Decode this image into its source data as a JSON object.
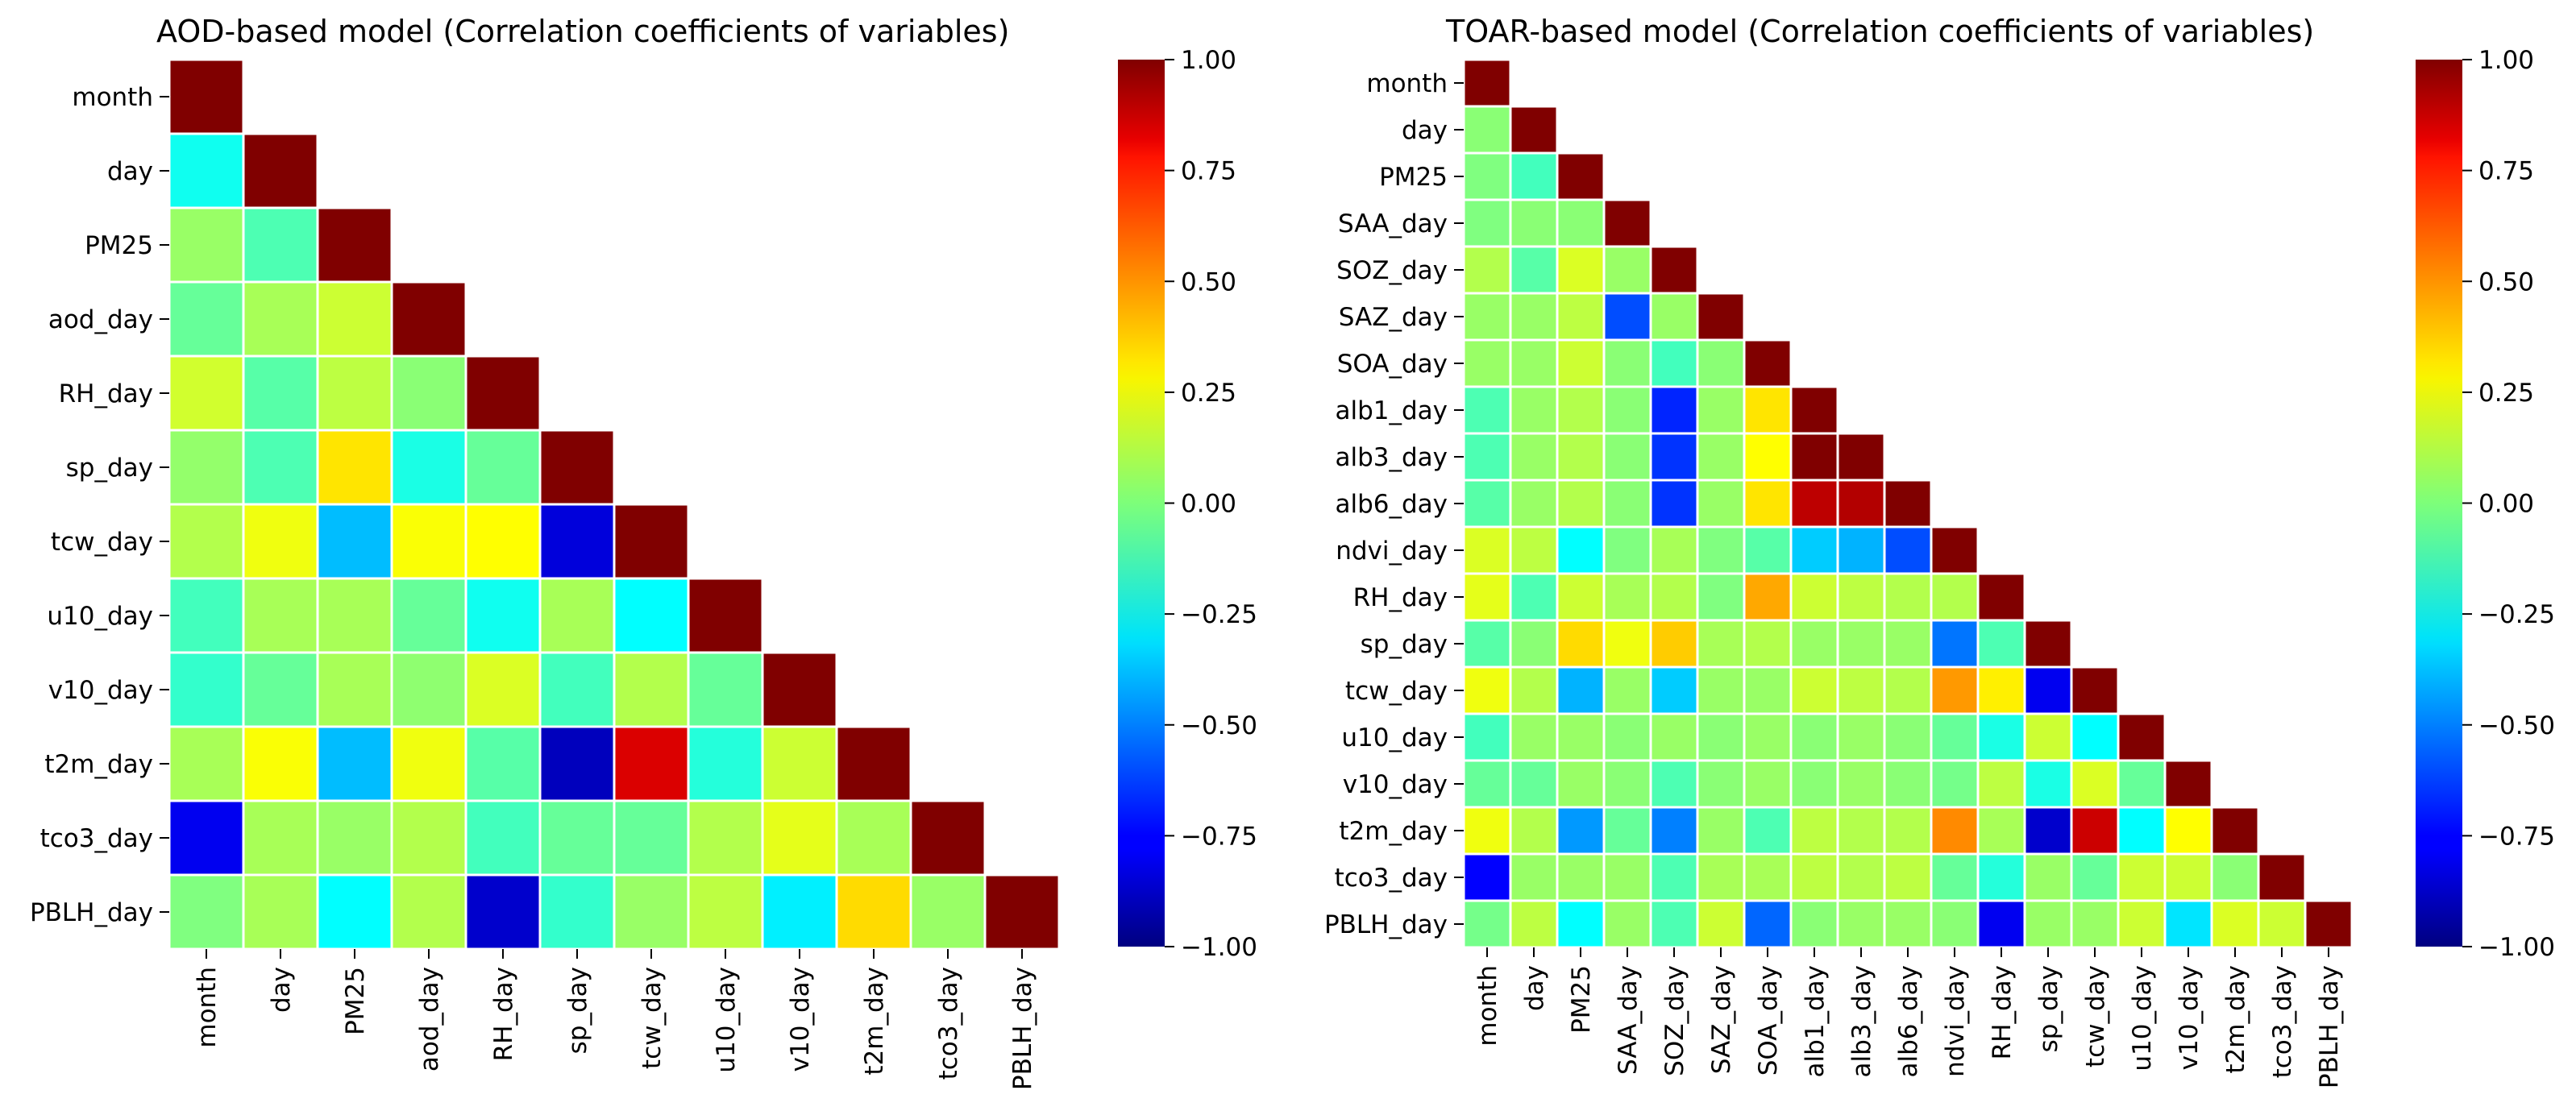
{
  "colormap": "jet",
  "chart_data": [
    {
      "type": "heatmap",
      "title": "AOD-based model (Correlation coefficients of variables)",
      "variables": [
        "month",
        "day",
        "PM25",
        "aod_day",
        "RH_day",
        "sp_day",
        "tcw_day",
        "u10_day",
        "v10_day",
        "t2m_day",
        "tco3_day",
        "PBLH_day"
      ],
      "mask": "lower-triangle",
      "values": [
        [
          1.0
        ],
        [
          -0.22,
          1.0
        ],
        [
          0.05,
          -0.1,
          1.0
        ],
        [
          -0.05,
          0.08,
          0.15,
          1.0
        ],
        [
          0.16,
          -0.08,
          0.12,
          0.02,
          1.0
        ],
        [
          0.04,
          -0.1,
          0.3,
          -0.2,
          -0.05,
          1.0
        ],
        [
          0.1,
          0.22,
          -0.38,
          0.24,
          0.25,
          -0.82,
          1.0
        ],
        [
          -0.12,
          0.08,
          0.08,
          -0.05,
          -0.22,
          0.08,
          -0.25,
          1.0
        ],
        [
          -0.15,
          -0.05,
          0.08,
          0.03,
          0.18,
          -0.12,
          0.1,
          -0.05,
          1.0
        ],
        [
          0.08,
          0.24,
          -0.38,
          0.22,
          -0.08,
          -0.88,
          0.82,
          -0.18,
          0.15,
          1.0
        ],
        [
          -0.78,
          0.08,
          0.05,
          0.1,
          -0.12,
          -0.05,
          -0.05,
          0.1,
          0.2,
          0.08,
          1.0
        ],
        [
          0.0,
          0.08,
          -0.25,
          0.1,
          -0.85,
          -0.15,
          0.05,
          0.12,
          -0.28,
          0.32,
          0.05,
          1.0
        ]
      ],
      "colorbar": {
        "min": -1.0,
        "max": 1.0,
        "ticks": [
          "1.00",
          "0.75",
          "0.50",
          "0.25",
          "0.00",
          "−0.25",
          "−0.50",
          "−0.75",
          "−1.00"
        ]
      }
    },
    {
      "type": "heatmap",
      "title": "TOAR-based model (Correlation coefficients of variables)",
      "variables": [
        "month",
        "day",
        "PM25",
        "SAA_day",
        "SOZ_day",
        "SAZ_day",
        "SOA_day",
        "alb1_day",
        "alb3_day",
        "alb6_day",
        "ndvi_day",
        "RH_day",
        "sp_day",
        "tcw_day",
        "u10_day",
        "v10_day",
        "t2m_day",
        "tco3_day",
        "PBLH_day"
      ],
      "mask": "lower-triangle",
      "values": [
        [
          1.0
        ],
        [
          0.02,
          1.0
        ],
        [
          0.0,
          -0.12,
          1.0
        ],
        [
          0.0,
          0.02,
          0.02,
          1.0
        ],
        [
          0.1,
          -0.08,
          0.18,
          0.05,
          1.0
        ],
        [
          0.05,
          0.05,
          0.12,
          -0.6,
          0.05,
          1.0
        ],
        [
          0.05,
          0.05,
          0.15,
          0.02,
          -0.12,
          0.02,
          1.0
        ],
        [
          -0.1,
          0.05,
          0.1,
          0.02,
          -0.68,
          0.05,
          0.3,
          1.0
        ],
        [
          -0.1,
          0.05,
          0.1,
          0.02,
          -0.65,
          0.05,
          0.25,
          1.0,
          1.0
        ],
        [
          -0.08,
          0.05,
          0.1,
          0.02,
          -0.65,
          0.05,
          0.3,
          0.88,
          0.9,
          1.0
        ],
        [
          0.18,
          0.12,
          -0.25,
          0.0,
          0.08,
          0.0,
          -0.08,
          -0.35,
          -0.4,
          -0.6,
          1.0
        ],
        [
          0.2,
          -0.1,
          0.15,
          0.08,
          0.1,
          0.0,
          0.42,
          0.15,
          0.12,
          0.1,
          0.1,
          1.0
        ],
        [
          -0.08,
          0.02,
          0.32,
          0.22,
          0.35,
          0.08,
          0.1,
          0.05,
          0.05,
          0.05,
          -0.52,
          -0.1,
          1.0
        ],
        [
          0.22,
          0.1,
          -0.4,
          0.05,
          -0.35,
          0.05,
          0.05,
          0.15,
          0.12,
          0.1,
          0.45,
          0.28,
          -0.78,
          1.0
        ],
        [
          -0.12,
          0.05,
          0.05,
          0.02,
          0.05,
          0.02,
          0.05,
          0.02,
          0.05,
          0.02,
          -0.05,
          -0.2,
          0.15,
          -0.25,
          1.0
        ],
        [
          -0.05,
          -0.05,
          0.05,
          0.02,
          -0.1,
          0.02,
          0.05,
          0.02,
          0.05,
          0.02,
          -0.02,
          0.12,
          -0.2,
          0.18,
          -0.05,
          1.0
        ],
        [
          0.22,
          0.1,
          -0.45,
          -0.05,
          -0.5,
          0.05,
          -0.1,
          0.12,
          0.1,
          0.1,
          0.48,
          0.08,
          -0.85,
          0.85,
          -0.25,
          0.25,
          1.0
        ],
        [
          -0.75,
          0.05,
          0.05,
          0.05,
          -0.1,
          0.08,
          0.08,
          0.12,
          0.1,
          0.12,
          -0.05,
          -0.18,
          0.05,
          -0.05,
          0.15,
          0.15,
          0.02,
          1.0
        ],
        [
          -0.02,
          0.12,
          -0.25,
          0.05,
          -0.1,
          0.15,
          -0.55,
          0.02,
          0.05,
          0.05,
          0.02,
          -0.78,
          0.05,
          0.05,
          0.15,
          -0.3,
          0.18,
          0.15,
          1.0
        ]
      ],
      "colorbar": {
        "min": -1.0,
        "max": 1.0,
        "ticks": [
          "1.00",
          "0.75",
          "0.50",
          "0.25",
          "0.00",
          "−0.25",
          "−0.50",
          "−0.75",
          "−1.00"
        ]
      }
    }
  ]
}
